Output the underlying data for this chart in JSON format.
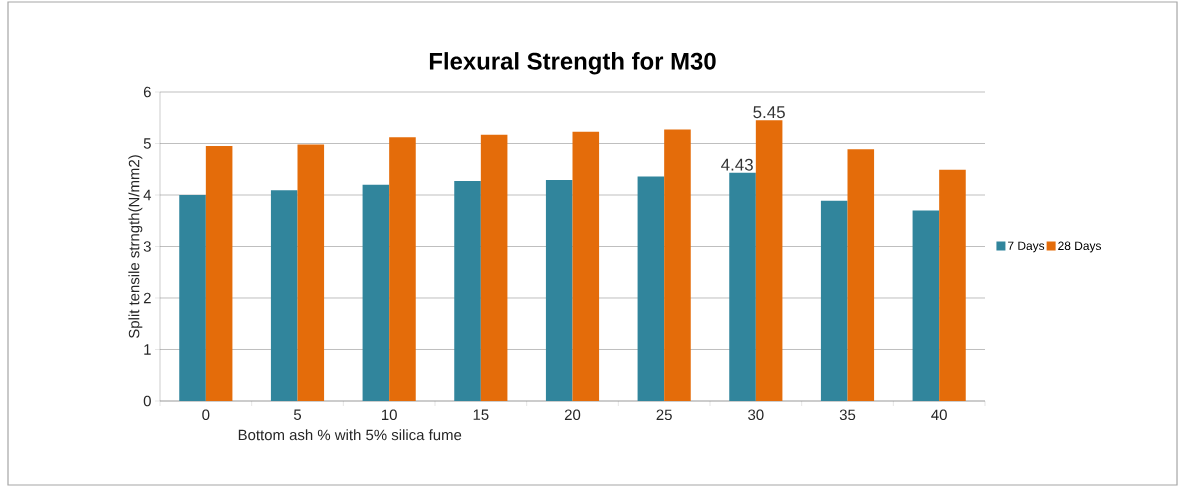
{
  "chart_data": {
    "type": "bar",
    "title": "Flexural Strength for M30",
    "xlabel": "Bottom ash % with 5% silica fume",
    "ylabel": "Split tensile strngth(N/mm2)",
    "categories": [
      "0",
      "5",
      "10",
      "15",
      "20",
      "25",
      "30",
      "35",
      "40"
    ],
    "series": [
      {
        "name": "7 Days",
        "color": "#31859c",
        "values": [
          4.0,
          4.09,
          4.2,
          4.27,
          4.29,
          4.36,
          4.43,
          3.89,
          3.7
        ],
        "value_labels": [
          null,
          null,
          null,
          null,
          null,
          null,
          "4.43",
          null,
          null
        ]
      },
      {
        "name": "28 Days",
        "color": "#e46c0a",
        "values": [
          4.95,
          4.98,
          5.12,
          5.17,
          5.23,
          5.27,
          5.45,
          4.89,
          4.49
        ],
        "value_labels": [
          null,
          null,
          null,
          null,
          null,
          null,
          "5.45",
          null,
          null
        ]
      }
    ],
    "ylim": [
      0,
      6
    ],
    "yticks": [
      0,
      1,
      2,
      3,
      4,
      5,
      6
    ],
    "grid": "y",
    "legend": "right"
  }
}
